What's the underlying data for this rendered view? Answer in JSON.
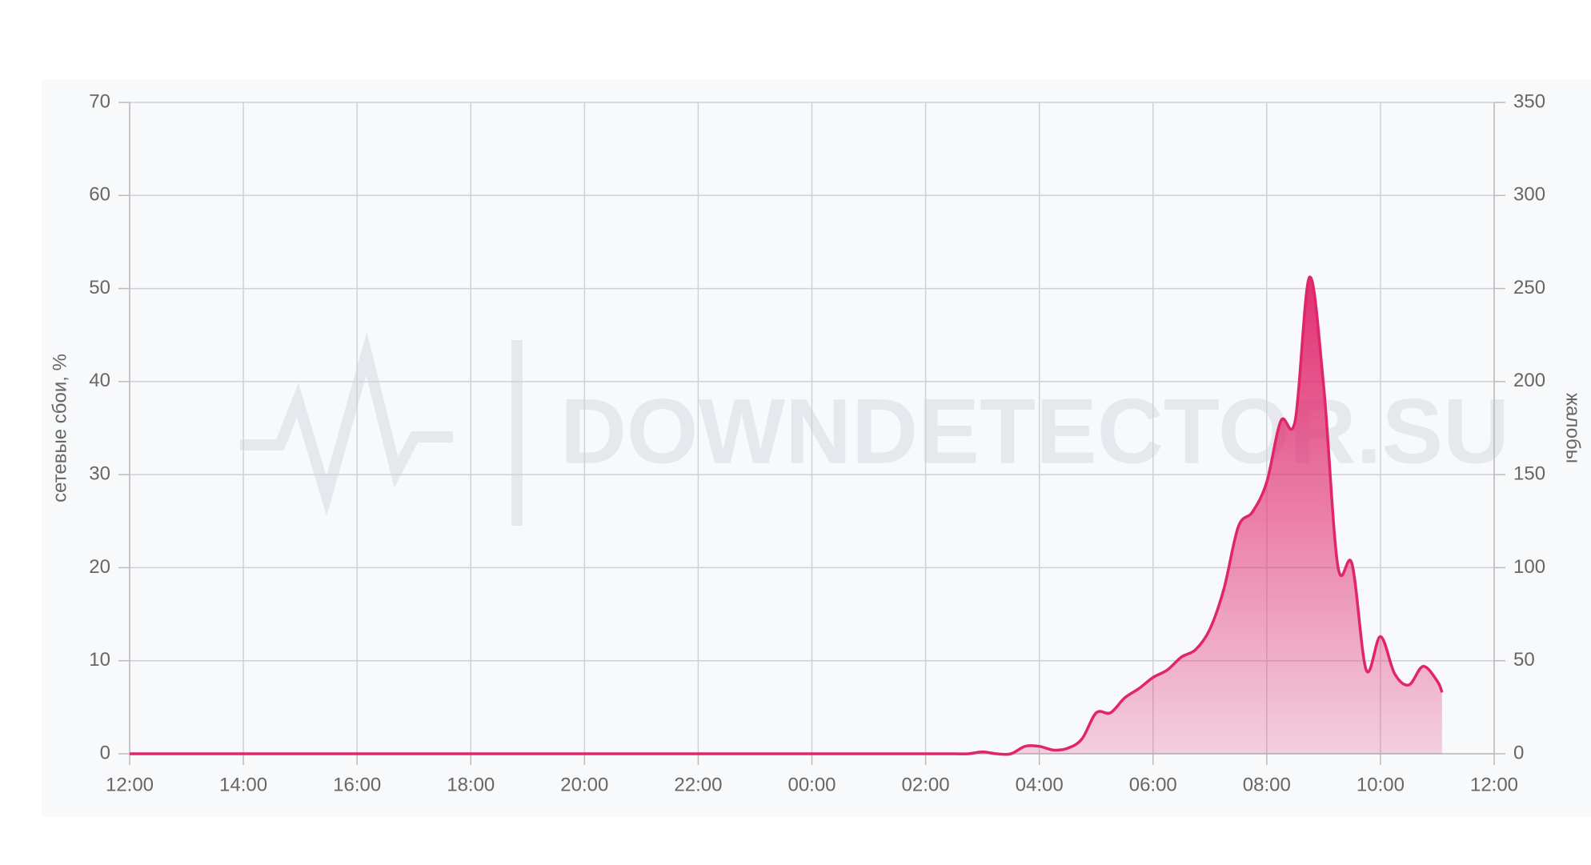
{
  "chart_data": {
    "type": "area",
    "watermark": "DOWNDETECTOR.SU",
    "ylabel": "сетевые сбои, %",
    "y2label": "жалобы",
    "xticks": [
      "12:00",
      "14:00",
      "16:00",
      "18:00",
      "20:00",
      "22:00",
      "00:00",
      "02:00",
      "04:00",
      "06:00",
      "08:00",
      "10:00",
      "12:00"
    ],
    "ylim": [
      0,
      70
    ],
    "yticks": [
      0,
      10,
      20,
      30,
      40,
      50,
      60,
      70
    ],
    "y2lim": [
      0,
      350
    ],
    "y2ticks": [
      0,
      50,
      100,
      150,
      200,
      250,
      300,
      350
    ],
    "grid": true,
    "x": [
      "12:00",
      "13:00",
      "14:00",
      "15:00",
      "16:00",
      "17:00",
      "18:00",
      "19:00",
      "20:00",
      "21:00",
      "22:00",
      "23:00",
      "00:00",
      "01:00",
      "02:00",
      "02:15",
      "02:30",
      "02:45",
      "03:00",
      "03:15",
      "03:30",
      "03:45",
      "04:00",
      "04:15",
      "04:30",
      "04:45",
      "05:00",
      "05:15",
      "05:30",
      "05:45",
      "06:00",
      "06:15",
      "06:30",
      "06:45",
      "07:00",
      "07:15",
      "07:30",
      "07:45",
      "08:00",
      "08:15",
      "08:30",
      "08:45",
      "09:00",
      "09:15",
      "09:30",
      "09:45",
      "10:00",
      "10:15",
      "10:30",
      "10:45",
      "11:00",
      "11:05"
    ],
    "series": [
      {
        "axis": "y2",
        "color": "#e0256a",
        "values": [
          0,
          0,
          0,
          0,
          0,
          0,
          0,
          0,
          0,
          0,
          0,
          0,
          0,
          0,
          0,
          0,
          0,
          0,
          1,
          0,
          0,
          4,
          4,
          2,
          3,
          8,
          22,
          22,
          30,
          35,
          41,
          45,
          52,
          56,
          67,
          89,
          122,
          130,
          146,
          179,
          179,
          256,
          198,
          101,
          102,
          45,
          63,
          43,
          37,
          47,
          39,
          33
        ]
      }
    ]
  }
}
